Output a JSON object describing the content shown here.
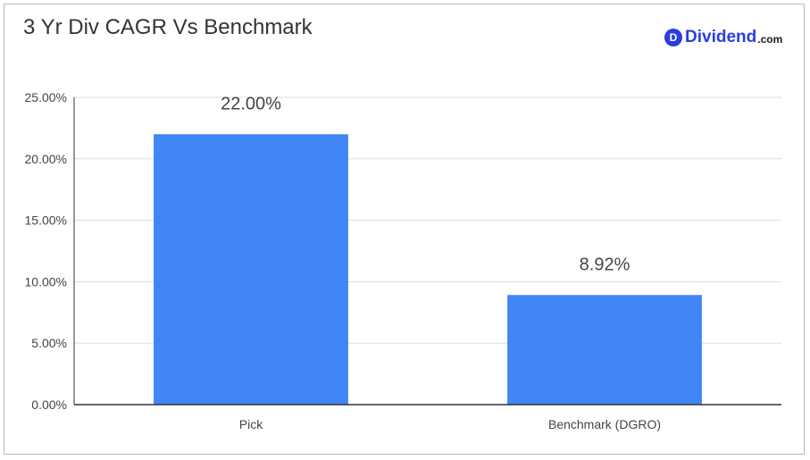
{
  "chart_data": {
    "type": "bar",
    "title": "3 Yr Div CAGR Vs Benchmark",
    "categories": [
      "Pick",
      "Benchmark (DGRO)"
    ],
    "values": [
      22.0,
      8.92
    ],
    "data_labels": [
      "22.00%",
      "8.92%"
    ],
    "ylim": [
      0,
      25
    ],
    "yticks": [
      0,
      5,
      10,
      15,
      20,
      25
    ],
    "ytick_labels": [
      "0.00%",
      "5.00%",
      "10.00%",
      "15.00%",
      "20.00%",
      "25.00%"
    ],
    "xlabel": "",
    "ylabel": "",
    "grid": true,
    "bar_color": "#4285f4"
  },
  "logo": {
    "badge": "D",
    "word": "Dividend",
    "tld": ".com",
    "color": "#2b3de0"
  }
}
